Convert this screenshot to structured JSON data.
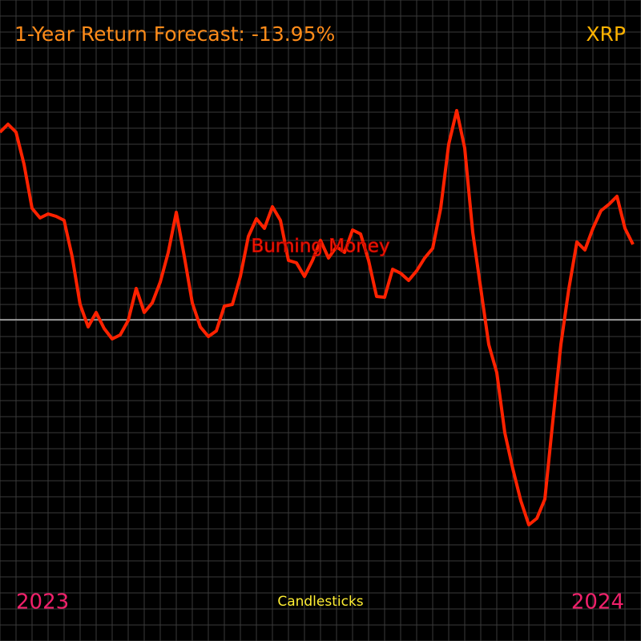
{
  "chart_data": {
    "type": "line",
    "title": "1-Year Return Forecast: -13.95%",
    "ticker": "XRP",
    "annotation": "Burning Money",
    "footer": "Candlesticks",
    "x_labels": [
      "2023",
      "2024"
    ],
    "color": "#ff2200",
    "baseline": 0,
    "ylim": [
      -401,
      399
    ],
    "values": [
      234,
      244,
      234,
      194,
      139,
      127,
      132,
      129,
      124,
      79,
      19,
      -9,
      9,
      -11,
      -24,
      -19,
      -1,
      39,
      9,
      21,
      47,
      84,
      134,
      79,
      21,
      -9,
      -21,
      -14,
      17,
      19,
      54,
      104,
      126,
      114,
      141,
      124,
      74,
      71,
      54,
      74,
      99,
      77,
      91,
      84,
      112,
      107,
      74,
      29,
      28,
      63,
      58,
      49,
      61,
      77,
      89,
      139,
      219,
      261,
      214,
      109,
      39,
      -31,
      -66,
      -141,
      -186,
      -226,
      -256,
      -248,
      -224,
      -126,
      -31,
      39,
      97,
      87,
      114,
      136,
      144,
      154,
      114,
      94
    ]
  }
}
